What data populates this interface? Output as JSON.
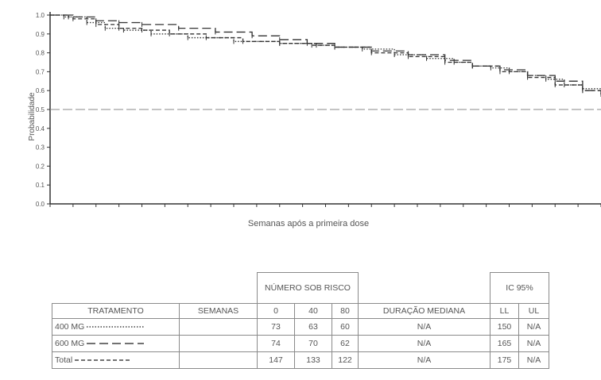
{
  "chart_data": {
    "type": "line",
    "title": "",
    "xlabel": "Semanas após a primeira dose",
    "ylabel": "Probabilidade",
    "ylim": [
      0,
      1
    ],
    "yticks": [
      "0.0",
      "0.1",
      "0.2",
      "0.3",
      "0.4",
      "0.5",
      "0.6",
      "0.7",
      "0.8",
      "0.9",
      "1.0"
    ],
    "xlim": [
      0,
      120
    ],
    "reference_line": 0.5,
    "grid": false,
    "series": [
      {
        "style": "dotted",
        "x": [
          0,
          3,
          8,
          12,
          16,
          22,
          30,
          40,
          50,
          58,
          62,
          68,
          75,
          82,
          88,
          92,
          96,
          100,
          104,
          108,
          112,
          116,
          120
        ],
        "y": [
          1.0,
          0.99,
          0.96,
          0.93,
          0.92,
          0.9,
          0.88,
          0.86,
          0.85,
          0.84,
          0.83,
          0.82,
          0.79,
          0.77,
          0.75,
          0.73,
          0.72,
          0.7,
          0.68,
          0.66,
          0.63,
          0.61,
          0.58
        ]
      },
      {
        "style": "long-dash",
        "x": [
          0,
          4,
          10,
          15,
          20,
          28,
          36,
          44,
          50,
          56,
          62,
          70,
          78,
          86,
          92,
          98,
          104,
          110,
          116,
          120
        ],
        "y": [
          1.0,
          0.99,
          0.97,
          0.96,
          0.95,
          0.93,
          0.91,
          0.89,
          0.87,
          0.85,
          0.83,
          0.81,
          0.79,
          0.76,
          0.73,
          0.71,
          0.68,
          0.65,
          0.6,
          0.58
        ]
      },
      {
        "style": "short-dash",
        "x": [
          0,
          5,
          10,
          15,
          20,
          26,
          34,
          42,
          50,
          57,
          62,
          70,
          78,
          86,
          92,
          98,
          104,
          110,
          116,
          120
        ],
        "y": [
          1.0,
          0.98,
          0.95,
          0.93,
          0.92,
          0.9,
          0.88,
          0.86,
          0.85,
          0.84,
          0.83,
          0.8,
          0.78,
          0.75,
          0.73,
          0.7,
          0.67,
          0.63,
          0.6,
          0.58
        ]
      }
    ]
  },
  "table": {
    "header_numero": "NÚMERO SOB RISCO",
    "header_ic": "IC 95%",
    "col_tratamento": "TRATAMENTO",
    "col_semanas": "SEMANAS",
    "col_w0": "0",
    "col_w40": "40",
    "col_w80": "80",
    "col_duracao": "DURAÇÃO  MEDIANA",
    "col_ll": "LL",
    "col_ul": "UL",
    "rows": [
      {
        "tratamento": "400 MG",
        "line_style": "dotted",
        "semanas": "",
        "n0": "73",
        "n40": "63",
        "n80": "60",
        "mediana": "N/A",
        "ll": "150",
        "ul": "N/A"
      },
      {
        "tratamento": "600 MG",
        "line_style": "long-dash",
        "semanas": "",
        "n0": "74",
        "n40": "70",
        "n80": "62",
        "mediana": "N/A",
        "ll": "165",
        "ul": "N/A"
      },
      {
        "tratamento": "Total",
        "line_style": "short-dash",
        "semanas": "",
        "n0": "147",
        "n40": "133",
        "n80": "122",
        "mediana": "N/A",
        "ll": "175",
        "ul": "N/A"
      }
    ]
  }
}
